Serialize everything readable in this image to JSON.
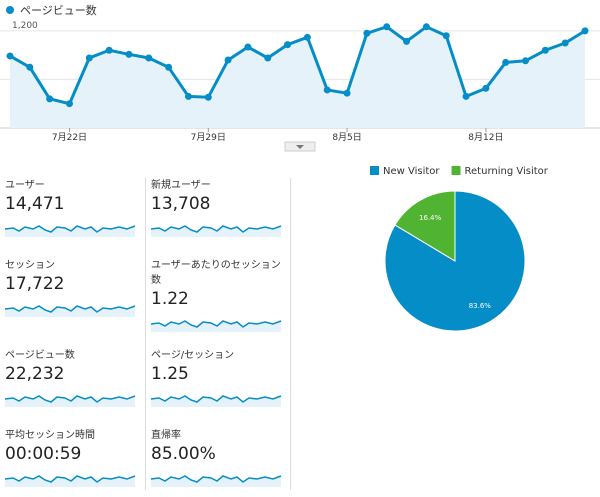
{
  "chart_data": [
    {
      "type": "line",
      "series": [
        {
          "name": "ページビュー数",
          "color": "#058dc7",
          "values": [
            890,
            750,
            360,
            300,
            865,
            960,
            910,
            865,
            750,
            390,
            380,
            840,
            1000,
            865,
            1030,
            1120,
            470,
            430,
            1170,
            1250,
            1070,
            1250,
            1140,
            390,
            490,
            810,
            830,
            960,
            1050,
            1200
          ]
        }
      ],
      "categories": [
        null,
        null,
        null,
        "7月22日",
        null,
        null,
        null,
        null,
        null,
        null,
        "7月29日",
        null,
        null,
        null,
        null,
        null,
        null,
        "8月5日",
        null,
        null,
        null,
        null,
        null,
        null,
        "8月12日",
        null,
        null,
        null,
        null,
        null
      ],
      "ylim": [
        0,
        1300
      ],
      "yticks": [
        600,
        {
          "value": 1200,
          "label": "1,200"
        }
      ],
      "grid": true
    },
    {
      "type": "pie",
      "categories": [
        "New Visitor",
        "Returning Visitor"
      ],
      "values": [
        83.6,
        16.4
      ],
      "value_labels": [
        "83.6%",
        "16.4%"
      ],
      "colors": [
        "#058dc7",
        "#50b432"
      ]
    }
  ],
  "metrics": [
    {
      "label": "ユーザー",
      "value": "14,471"
    },
    {
      "label": "新規ユーザー",
      "value": "13,708"
    },
    {
      "label": "セッション",
      "value": "17,722"
    },
    {
      "label": "ユーザーあたりのセッション数",
      "value": "1.22"
    },
    {
      "label": "ページビュー数",
      "value": "22,232"
    },
    {
      "label": "ページ/セッション",
      "value": "1.25"
    },
    {
      "label": "平均セッション時間",
      "value": "00:00:59"
    },
    {
      "label": "直帰率",
      "value": "85.00%"
    }
  ]
}
